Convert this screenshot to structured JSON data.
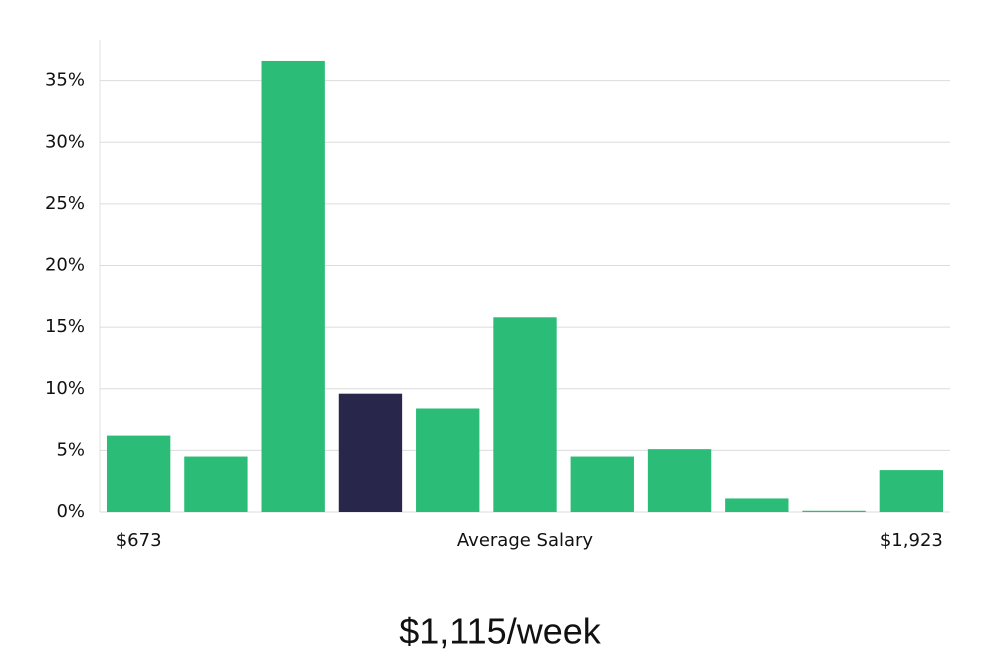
{
  "chart_data": {
    "type": "bar",
    "categories": [
      "$673",
      null,
      null,
      null,
      null,
      null,
      null,
      null,
      null,
      null,
      "$1,923"
    ],
    "values": [
      6.2,
      4.5,
      36.6,
      9.6,
      8.4,
      15.8,
      4.5,
      5.1,
      1.1,
      0.1,
      3.4
    ],
    "color": "#2bbd77",
    "highlight": {
      "index": 3,
      "color": "#28264a"
    },
    "xlabel": "Average Salary",
    "annotation": "$1,115/week",
    "ylim": [
      0,
      38.3
    ],
    "yticks": [
      {
        "value": 0,
        "label": "0%"
      },
      {
        "value": 5,
        "label": "5%"
      },
      {
        "value": 10,
        "label": "10%"
      },
      {
        "value": 15,
        "label": "15%"
      },
      {
        "value": 20,
        "label": "20%"
      },
      {
        "value": 25,
        "label": "25%"
      },
      {
        "value": 30,
        "label": "30%"
      },
      {
        "value": 35,
        "label": "35%"
      }
    ],
    "grid": true
  }
}
